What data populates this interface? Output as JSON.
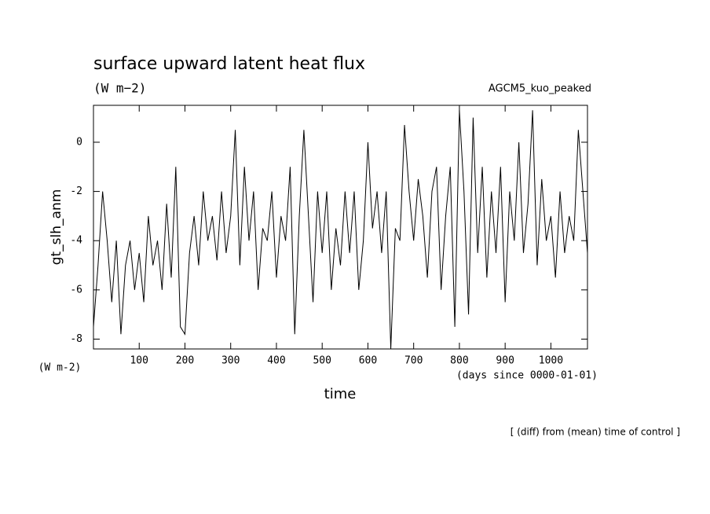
{
  "chart_data": {
    "type": "line",
    "title": "surface upward latent heat flux",
    "subtitle": "(W m−2)",
    "annotation": "AGCM5_kuo_peaked",
    "y_label": "gt_slh_anm",
    "y_units": "(W m-2)",
    "x_label": "time",
    "x_units": "(days since 0000-01-01)",
    "footnote": "[ (diff) from (mean) time of control ]",
    "xlim": [
      0,
      1080
    ],
    "ylim": [
      -8.4,
      1.5
    ],
    "xticks": [
      100,
      200,
      300,
      400,
      500,
      600,
      700,
      800,
      900,
      1000
    ],
    "yticks": [
      -8,
      -6,
      -4,
      -2,
      0
    ],
    "x": [
      0,
      10,
      20,
      30,
      40,
      50,
      60,
      70,
      80,
      90,
      100,
      110,
      120,
      130,
      140,
      150,
      160,
      170,
      180,
      190,
      200,
      210,
      220,
      230,
      240,
      250,
      260,
      270,
      280,
      290,
      300,
      310,
      320,
      330,
      340,
      350,
      360,
      370,
      380,
      390,
      400,
      410,
      420,
      430,
      440,
      450,
      460,
      470,
      480,
      490,
      500,
      510,
      520,
      530,
      540,
      550,
      560,
      570,
      580,
      590,
      600,
      610,
      620,
      630,
      640,
      650,
      660,
      670,
      680,
      690,
      700,
      710,
      720,
      730,
      740,
      750,
      760,
      770,
      780,
      790,
      800,
      810,
      820,
      830,
      840,
      850,
      860,
      870,
      880,
      890,
      900,
      910,
      920,
      930,
      940,
      950,
      960,
      970,
      980,
      990,
      1000,
      1010,
      1020,
      1030,
      1040,
      1050,
      1060,
      1070,
      1080
    ],
    "series": [
      {
        "name": "gt_slh_anm",
        "color": "#000000",
        "values": [
          -7.5,
          -5,
          -2,
          -4,
          -6.5,
          -4,
          -7.8,
          -5,
          -4,
          -6,
          -4.5,
          -6.5,
          -3,
          -5,
          -4,
          -6,
          -2.5,
          -5.5,
          -1,
          -7.5,
          -7.8,
          -4.5,
          -3,
          -5,
          -2,
          -4,
          -3,
          -4.8,
          -2,
          -4.5,
          -3,
          0.5,
          -5,
          -1,
          -4,
          -2,
          -6,
          -3.5,
          -4,
          -2,
          -5.5,
          -3,
          -4,
          -1,
          -7.8,
          -3,
          0.5,
          -3,
          -6.5,
          -2,
          -4.5,
          -2,
          -6,
          -3.5,
          -5,
          -2,
          -4.5,
          -2,
          -6,
          -4,
          0,
          -3.5,
          -2,
          -4.5,
          -2,
          -8.4,
          -3.5,
          -4,
          0.7,
          -2,
          -4,
          -1.5,
          -3,
          -5.5,
          -2,
          -1,
          -6,
          -3,
          -1,
          -7.5,
          1.3,
          -2,
          -7,
          1,
          -4.5,
          -1,
          -5.5,
          -2,
          -4.5,
          -1,
          -6.5,
          -2,
          -4,
          0,
          -4.5,
          -2.5,
          1.3,
          -5,
          -1.5,
          -4,
          -3,
          -5.5,
          -2,
          -4.5,
          -3,
          -4,
          0.5,
          -2,
          -4.5
        ]
      }
    ]
  }
}
